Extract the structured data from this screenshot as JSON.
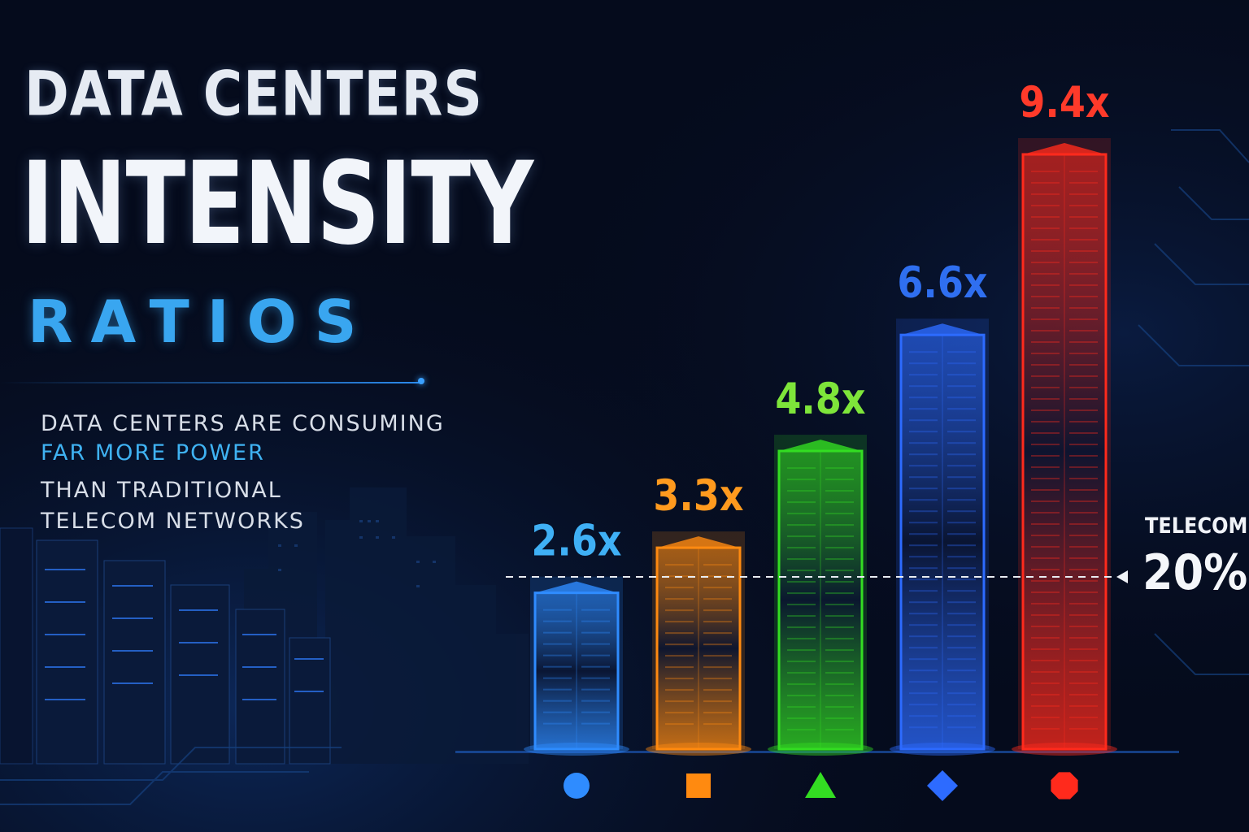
{
  "title": {
    "line1": "DATA CENTERS",
    "line2": "INTENSITY",
    "line3": "RATIOS"
  },
  "subtitle": {
    "line1": "DATA CENTERS ARE CONSUMING",
    "line2": "FAR MORE POWER",
    "line3": "THAN TRADITIONAL",
    "line4": "TELECOM NETWORKS"
  },
  "reference": {
    "label": "TELECOM",
    "value": "20%"
  },
  "colors": {
    "background": "#050b1c",
    "accent": "#39a6f0",
    "reference_line": "#e8ecf2"
  },
  "chart_data": {
    "type": "bar",
    "categories": [
      "",
      "",
      "",
      "",
      ""
    ],
    "values": [
      2.6,
      3.3,
      4.8,
      6.6,
      9.4
    ],
    "value_labels": [
      "2.6x",
      "3.3x",
      "4.8x",
      "6.6x",
      "9.4x"
    ],
    "colors": [
      "#2f8cff",
      "#ff8a10",
      "#33dd22",
      "#2d6bff",
      "#ff2a1c"
    ],
    "label_colors": [
      "#3fb0f5",
      "#ff9a1e",
      "#7ee53a",
      "#2f6ff0",
      "#ff3a2a"
    ],
    "markers": [
      "circle-icon",
      "square-icon",
      "triangle-icon",
      "diamond-icon",
      "octagon-icon"
    ],
    "ylim": [
      0,
      10.2
    ],
    "reference_line": {
      "label": "TELECOM",
      "value_label": "20%"
    },
    "grid": false,
    "title": "",
    "xlabel": "",
    "ylabel": ""
  }
}
